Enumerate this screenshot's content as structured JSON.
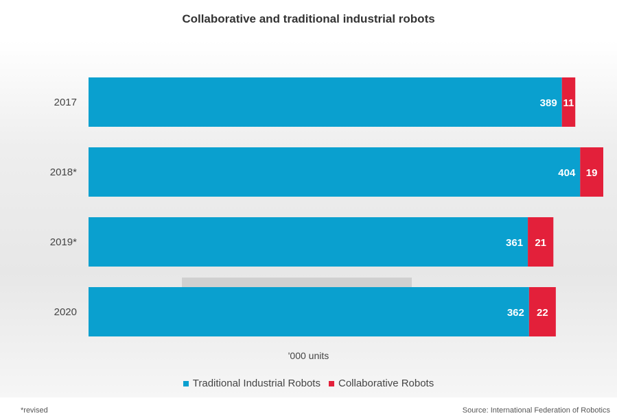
{
  "chart_data": {
    "type": "bar",
    "orientation": "horizontal",
    "stacked": true,
    "title": "Collaborative and traditional industrial robots",
    "categories": [
      "2017",
      "2018*",
      "2019*",
      "2020"
    ],
    "series": [
      {
        "name": "Traditional Industrial Robots",
        "values": [
          389,
          404,
          361,
          362
        ],
        "color": "#0aa0cf"
      },
      {
        "name": "Collaborative Robots",
        "values": [
          11,
          19,
          21,
          22
        ],
        "color": "#e3203a"
      }
    ],
    "xlabel": "'000 units",
    "xlim": [
      0,
      423
    ],
    "grid": false,
    "legend_position": "bottom"
  },
  "footnote": "*revised",
  "source": "Source: International Federation of Robotics"
}
